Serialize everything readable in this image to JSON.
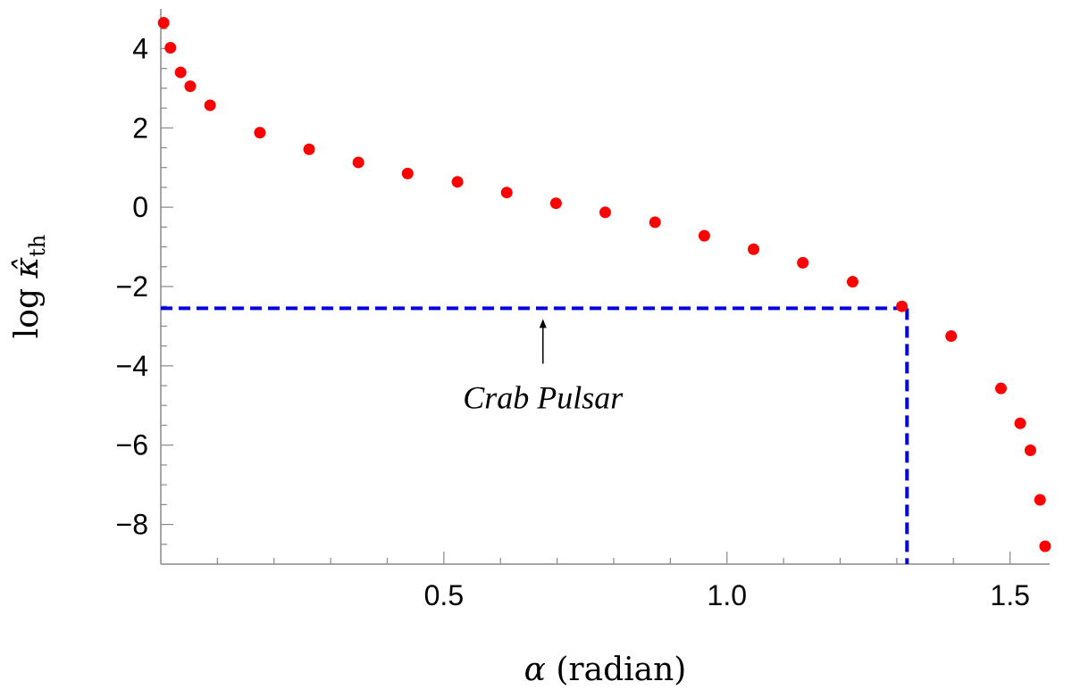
{
  "chart_data": {
    "type": "scatter",
    "xlabel_symbol": "α",
    "xlabel_rest": "(radian)",
    "ylabel_main": "log ",
    "ylabel_symbol": "κ̂",
    "ylabel_sub": "th",
    "xlim": [
      0,
      1.57
    ],
    "ylim": [
      -9,
      5
    ],
    "x_ticks": [
      0.5,
      1.0,
      1.5
    ],
    "x_tick_labels": [
      "0.5",
      "1.0",
      "1.5"
    ],
    "y_ticks": [
      4,
      2,
      0,
      -2,
      -4,
      -6,
      -8
    ],
    "y_tick_labels": [
      "4",
      "2",
      "0",
      "−2",
      "−4",
      "−6",
      "−8"
    ],
    "grid": false,
    "point_color": "#ff0000",
    "points": [
      {
        "x": 0.005,
        "y": 4.65
      },
      {
        "x": 0.017,
        "y": 4.02
      },
      {
        "x": 0.035,
        "y": 3.4
      },
      {
        "x": 0.052,
        "y": 3.05
      },
      {
        "x": 0.087,
        "y": 2.57
      },
      {
        "x": 0.175,
        "y": 1.88
      },
      {
        "x": 0.262,
        "y": 1.46
      },
      {
        "x": 0.349,
        "y": 1.13
      },
      {
        "x": 0.436,
        "y": 0.85
      },
      {
        "x": 0.524,
        "y": 0.64
      },
      {
        "x": 0.611,
        "y": 0.37
      },
      {
        "x": 0.698,
        "y": 0.1
      },
      {
        "x": 0.785,
        "y": -0.13
      },
      {
        "x": 0.873,
        "y": -0.38
      },
      {
        "x": 0.96,
        "y": -0.72
      },
      {
        "x": 1.047,
        "y": -1.06
      },
      {
        "x": 1.134,
        "y": -1.4
      },
      {
        "x": 1.222,
        "y": -1.88
      },
      {
        "x": 1.309,
        "y": -2.5
      },
      {
        "x": 1.396,
        "y": -3.25
      },
      {
        "x": 1.484,
        "y": -4.57
      },
      {
        "x": 1.518,
        "y": -5.45
      },
      {
        "x": 1.536,
        "y": -6.13
      },
      {
        "x": 1.553,
        "y": -7.38
      },
      {
        "x": 1.562,
        "y": -8.55
      }
    ],
    "reference_line": {
      "x": 1.318,
      "y": -2.55,
      "color": "#0000dd"
    },
    "annotation": {
      "text": "Crab Pulsar",
      "arrow_x": 0.675
    }
  }
}
